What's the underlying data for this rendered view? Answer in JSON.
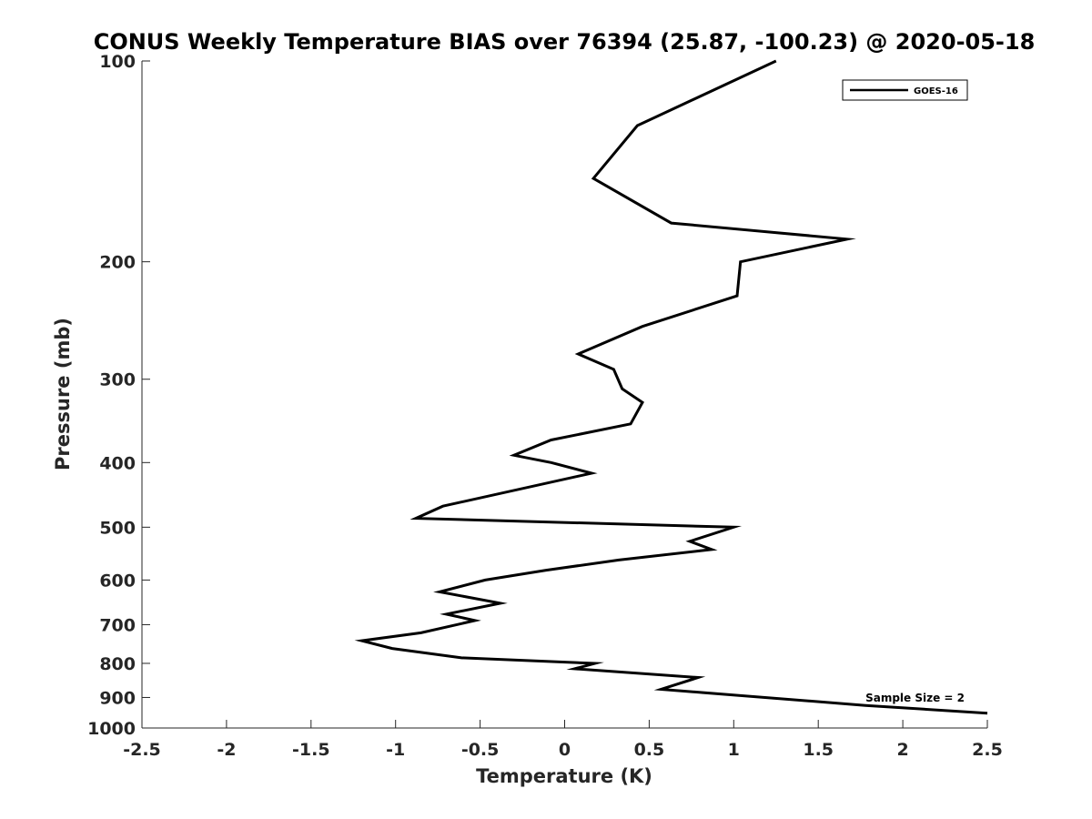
{
  "chart_data": {
    "type": "line",
    "title": "CONUS Weekly Temperature BIAS over 76394 (25.87, -100.23) @ 2020-05-18",
    "xlabel": "Temperature (K)",
    "ylabel": "Pressure (mb)",
    "xlim": [
      -2.5,
      2.5
    ],
    "ylim": [
      100,
      1000
    ],
    "y_scale": "log",
    "y_reversed": true,
    "grid": false,
    "x_ticks": [
      -2.5,
      -2,
      -1.5,
      -1,
      -0.5,
      0,
      0.5,
      1,
      1.5,
      2,
      2.5
    ],
    "x_tick_labels": [
      "-2.5",
      "-2",
      "-1.5",
      "-1",
      "-0.5",
      "0",
      "0.5",
      "1",
      "1.5",
      "2",
      "2.5"
    ],
    "y_ticks": [
      100,
      200,
      300,
      400,
      500,
      600,
      700,
      800,
      900,
      1000
    ],
    "y_tick_labels": [
      "100",
      "200",
      "300",
      "400",
      "500",
      "600",
      "700",
      "800",
      "900",
      "1000"
    ],
    "legend_position": "top-right",
    "series": [
      {
        "name": "GOES-16",
        "color": "#000000",
        "x": [
          1.25,
          0.43,
          0.17,
          0.63,
          1.67,
          1.04,
          1.02,
          0.46,
          0.08,
          0.29,
          0.34,
          0.46,
          0.39,
          -0.08,
          -0.3,
          -0.08,
          0.16,
          -0.72,
          -0.88,
          1.0,
          0.74,
          0.87,
          0.32,
          -0.11,
          -0.47,
          -0.74,
          -0.38,
          -0.7,
          -0.53,
          -0.85,
          -1.2,
          -1.02,
          -0.61,
          0.18,
          0.06,
          0.79,
          0.57,
          1.78,
          2.5
        ],
        "y": [
          100,
          125,
          150,
          175,
          185,
          200,
          225,
          250,
          275,
          290,
          310,
          325,
          350,
          370,
          390,
          400,
          415,
          465,
          485,
          500,
          525,
          540,
          560,
          580,
          600,
          625,
          650,
          675,
          690,
          720,
          740,
          760,
          785,
          800,
          815,
          840,
          875,
          925,
          950
        ]
      }
    ],
    "annotation": "Sample Size = 2"
  }
}
